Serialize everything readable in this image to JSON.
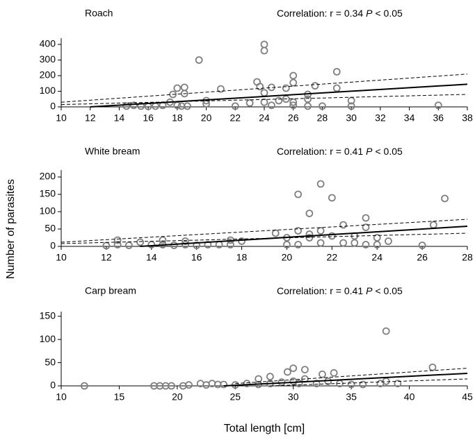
{
  "ylabel": "Number of parasites",
  "xlabel": "Total length [cm]",
  "chart_data": [
    {
      "type": "scatter",
      "title": "Roach",
      "correlation": "Correlation: r = 0.34",
      "p_symbol": "P",
      "p_threshold": "< 0.05",
      "x": [
        14.5,
        15,
        15.5,
        16,
        16.5,
        17,
        17.5,
        17.7,
        18,
        18,
        18.3,
        18.5,
        18.5,
        18.7,
        19.5,
        20,
        20,
        21,
        22,
        23,
        23.5,
        23.7,
        24,
        24,
        24,
        24,
        24.5,
        24.5,
        25,
        25.5,
        25.5,
        26,
        26,
        26,
        26,
        27,
        27,
        27,
        27.5,
        28,
        29,
        29,
        30,
        30,
        36
      ],
      "y": [
        5,
        10,
        5,
        3,
        5,
        10,
        30,
        80,
        120,
        10,
        5,
        125,
        85,
        5,
        300,
        40,
        20,
        115,
        5,
        25,
        160,
        130,
        400,
        360,
        90,
        30,
        125,
        10,
        40,
        120,
        50,
        200,
        155,
        30,
        10,
        80,
        50,
        5,
        135,
        5,
        225,
        120,
        40,
        5,
        10
      ],
      "fit": {
        "x": [
          12,
          38
        ],
        "y": [
          0,
          145
        ]
      },
      "ci_upper": {
        "x": [
          10,
          38
        ],
        "y": [
          30,
          210
        ]
      },
      "ci_lower": {
        "x": [
          10,
          38
        ],
        "y": [
          15,
          80
        ]
      },
      "xlim": [
        10,
        38
      ],
      "ylim": [
        0,
        440
      ],
      "xticks": [
        10,
        12,
        14,
        16,
        18,
        20,
        22,
        24,
        26,
        28,
        30,
        32,
        34,
        36,
        38
      ],
      "yticks": [
        0,
        100,
        200,
        300,
        400
      ],
      "marker_color": "#7f7f7f"
    },
    {
      "type": "scatter",
      "title": "White bream",
      "correlation": "Correlation: r = 0.41",
      "p_symbol": "P",
      "p_threshold": "< 0.05",
      "x": [
        12,
        12.5,
        12.5,
        13,
        13.5,
        14,
        14.5,
        14.5,
        15,
        15.5,
        15.5,
        16,
        16.5,
        17,
        17.5,
        17.5,
        18,
        19.5,
        20,
        20,
        20.5,
        20.5,
        20.5,
        21,
        21,
        21,
        21.5,
        21.5,
        21.5,
        22,
        22,
        22.5,
        22.5,
        23,
        23,
        23.5,
        23.5,
        23.5,
        24,
        24,
        24.5,
        26,
        26.5,
        27
      ],
      "y": [
        2,
        18,
        5,
        3,
        12,
        5,
        18,
        5,
        3,
        15,
        5,
        3,
        5,
        5,
        18,
        5,
        15,
        38,
        5,
        25,
        150,
        45,
        5,
        95,
        35,
        25,
        180,
        45,
        10,
        140,
        30,
        62,
        10,
        30,
        10,
        82,
        55,
        5,
        25,
        5,
        15,
        3,
        62,
        138
      ],
      "fit": {
        "x": [
          13.5,
          28
        ],
        "y": [
          0,
          58
        ]
      },
      "ci_upper": {
        "x": [
          10,
          28
        ],
        "y": [
          12,
          78
        ]
      },
      "ci_lower": {
        "x": [
          10,
          28
        ],
        "y": [
          8,
          38
        ]
      },
      "xlim": [
        10,
        28
      ],
      "ylim": [
        0,
        220
      ],
      "xticks": [
        10,
        12,
        14,
        16,
        18,
        20,
        22,
        24,
        26,
        28
      ],
      "yticks": [
        0,
        50,
        100,
        150,
        200
      ],
      "marker_color": "#7f7f7f"
    },
    {
      "type": "scatter",
      "title": "Carp bream",
      "correlation": "Correlation: r = 0.41",
      "p_symbol": "P",
      "p_threshold": "< 0.05",
      "x": [
        12,
        18,
        18.5,
        19,
        19.5,
        20.5,
        21,
        22,
        22.5,
        23,
        23.5,
        24,
        25,
        26,
        27,
        27,
        28,
        28,
        29,
        29.5,
        30,
        30,
        30.5,
        31,
        31,
        32,
        32.5,
        33,
        33.5,
        34,
        35,
        36,
        37.5,
        38,
        38,
        39,
        42
      ],
      "y": [
        0,
        0,
        0,
        0,
        0,
        0,
        2,
        5,
        2,
        5,
        3,
        3,
        2,
        5,
        15,
        3,
        20,
        5,
        8,
        30,
        38,
        10,
        5,
        35,
        15,
        5,
        25,
        10,
        28,
        5,
        3,
        3,
        5,
        118,
        10,
        5,
        40
      ],
      "fit": {
        "x": [
          24,
          45
        ],
        "y": [
          0,
          27
        ]
      },
      "ci_upper": {
        "x": [
          25,
          45
        ],
        "y": [
          5,
          38
        ]
      },
      "ci_lower": {
        "x": [
          28,
          45
        ],
        "y": [
          0,
          15
        ]
      },
      "xlim": [
        10,
        45
      ],
      "ylim": [
        0,
        160
      ],
      "xticks": [
        10,
        15,
        20,
        25,
        30,
        35,
        40,
        45
      ],
      "yticks": [
        0,
        50,
        100,
        150
      ],
      "marker_color": "#7f7f7f"
    }
  ]
}
